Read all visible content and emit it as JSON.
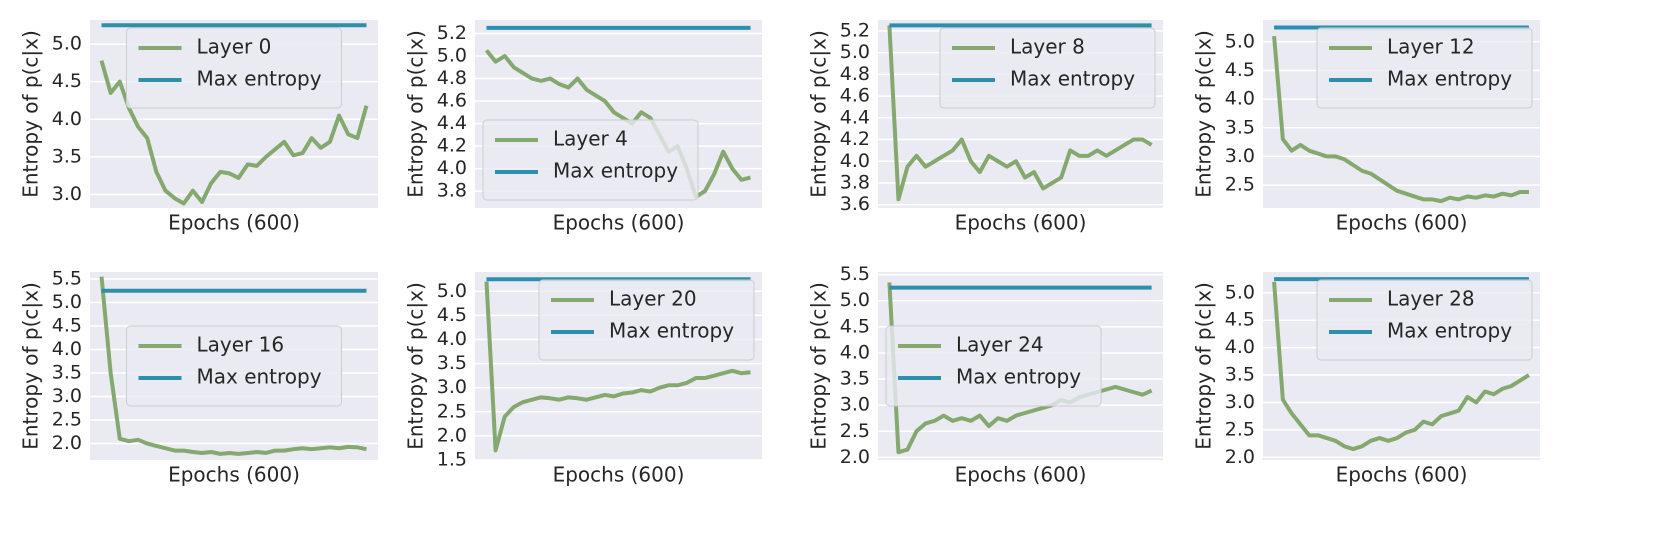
{
  "chart_data": [
    {
      "type": "line",
      "ylabel": "Entropy of p(c|x)",
      "xlabel": "Epochs (600)",
      "ylim": [
        2.82,
        5.32
      ],
      "yticks": [
        {
          "value": 3,
          "label": "3.0"
        },
        3.5,
        {
          "value": 4,
          "label": "4.0"
        },
        4.5,
        {
          "value": 5,
          "label": "5.0"
        }
      ],
      "grid": true,
      "legend": "upper center",
      "series": [
        {
          "name": "Layer 0",
          "color": "#84a86e",
          "values": [
            4.78,
            4.35,
            4.5,
            4.15,
            3.9,
            3.75,
            3.3,
            3.05,
            2.95,
            2.88,
            3.05,
            2.9,
            3.15,
            3.3,
            3.28,
            3.22,
            3.4,
            3.38,
            3.5,
            3.6,
            3.7,
            3.52,
            3.55,
            3.75,
            3.62,
            3.7,
            4.05,
            3.8,
            3.75,
            4.18
          ]
        },
        {
          "name": "Max entropy",
          "color": "#2e8fad",
          "values": [
            5.25,
            5.25,
            5.25,
            5.25,
            5.25,
            5.25,
            5.25,
            5.25,
            5.25,
            5.25,
            5.25,
            5.25,
            5.25,
            5.25,
            5.25,
            5.25,
            5.25,
            5.25,
            5.25,
            5.25,
            5.25,
            5.25,
            5.25,
            5.25,
            5.25,
            5.25,
            5.25,
            5.25,
            5.25,
            5.25
          ]
        }
      ]
    },
    {
      "type": "line",
      "ylabel": "Entropy of p(c|x)",
      "xlabel": "Epochs (600)",
      "ylim": [
        3.65,
        5.32
      ],
      "yticks": [
        3.8,
        {
          "value": 4,
          "label": "4.0"
        },
        4.2,
        4.4,
        4.6,
        4.8,
        {
          "value": 5,
          "label": "5.0"
        },
        5.2
      ],
      "grid": true,
      "legend": "lower left",
      "series": [
        {
          "name": "Layer 4",
          "color": "#84a86e",
          "values": [
            5.05,
            4.95,
            5.0,
            4.9,
            4.85,
            4.8,
            4.78,
            4.8,
            4.75,
            4.72,
            4.8,
            4.7,
            4.65,
            4.6,
            4.5,
            4.45,
            4.4,
            4.5,
            4.45,
            4.3,
            4.15,
            4.2,
            4.0,
            3.75,
            3.8,
            3.95,
            4.15,
            4.0,
            3.9,
            3.92
          ]
        },
        {
          "name": "Max entropy",
          "color": "#2e8fad",
          "values": [
            5.25,
            5.25,
            5.25,
            5.25,
            5.25,
            5.25,
            5.25,
            5.25,
            5.25,
            5.25,
            5.25,
            5.25,
            5.25,
            5.25,
            5.25,
            5.25,
            5.25,
            5.25,
            5.25,
            5.25,
            5.25,
            5.25,
            5.25,
            5.25,
            5.25,
            5.25,
            5.25,
            5.25,
            5.25,
            5.25
          ]
        }
      ]
    },
    {
      "type": "line",
      "ylabel": "Entropy of p(c|x)",
      "xlabel": "Epochs (600)",
      "ylim": [
        3.57,
        5.3
      ],
      "yticks": [
        3.6,
        3.8,
        {
          "value": 4,
          "label": "4.0"
        },
        4.2,
        4.4,
        4.6,
        4.8,
        {
          "value": 5,
          "label": "5.0"
        },
        5.2
      ],
      "grid": true,
      "legend": "upper right",
      "series": [
        {
          "name": "Layer 8",
          "color": "#84a86e",
          "values": [
            5.25,
            3.65,
            3.95,
            4.05,
            3.95,
            4.0,
            4.05,
            4.1,
            4.2,
            4.0,
            3.9,
            4.05,
            4.0,
            3.95,
            4.0,
            3.85,
            3.9,
            3.75,
            3.8,
            3.85,
            4.1,
            4.05,
            4.05,
            4.1,
            4.05,
            4.1,
            4.15,
            4.2,
            4.2,
            4.15
          ]
        },
        {
          "name": "Max entropy",
          "color": "#2e8fad",
          "values": [
            5.25,
            5.25,
            5.25,
            5.25,
            5.25,
            5.25,
            5.25,
            5.25,
            5.25,
            5.25,
            5.25,
            5.25,
            5.25,
            5.25,
            5.25,
            5.25,
            5.25,
            5.25,
            5.25,
            5.25,
            5.25,
            5.25,
            5.25,
            5.25,
            5.25,
            5.25,
            5.25,
            5.25,
            5.25,
            5.25
          ]
        }
      ]
    },
    {
      "type": "line",
      "ylabel": "Entropy of p(c|x)",
      "xlabel": "Epochs (600)",
      "ylim": [
        2.1,
        5.38
      ],
      "yticks": [
        2.5,
        {
          "value": 3,
          "label": "3.0"
        },
        3.5,
        {
          "value": 4,
          "label": "4.0"
        },
        4.5,
        {
          "value": 5,
          "label": "5.0"
        }
      ],
      "grid": true,
      "legend": "upper right",
      "series": [
        {
          "name": "Layer 12",
          "color": "#84a86e",
          "values": [
            5.1,
            3.3,
            3.1,
            3.2,
            3.1,
            3.05,
            3.0,
            3.0,
            2.95,
            2.85,
            2.75,
            2.7,
            2.6,
            2.5,
            2.4,
            2.35,
            2.3,
            2.25,
            2.25,
            2.22,
            2.28,
            2.25,
            2.3,
            2.28,
            2.32,
            2.3,
            2.35,
            2.32,
            2.38,
            2.38
          ]
        },
        {
          "name": "Max entropy",
          "color": "#2e8fad",
          "values": [
            5.25,
            5.25,
            5.25,
            5.25,
            5.25,
            5.25,
            5.25,
            5.25,
            5.25,
            5.25,
            5.25,
            5.25,
            5.25,
            5.25,
            5.25,
            5.25,
            5.25,
            5.25,
            5.25,
            5.25,
            5.25,
            5.25,
            5.25,
            5.25,
            5.25,
            5.25,
            5.25,
            5.25,
            5.25,
            5.25
          ]
        }
      ]
    },
    {
      "type": "line",
      "ylabel": "Entropy of p(c|x)",
      "xlabel": "Epochs (600)",
      "ylim": [
        1.65,
        5.65
      ],
      "yticks": [
        {
          "value": 2,
          "label": "2.0"
        },
        2.5,
        {
          "value": 3,
          "label": "3.0"
        },
        3.5,
        {
          "value": 4,
          "label": "4.0"
        },
        4.5,
        {
          "value": 5,
          "label": "5.0"
        },
        5.5
      ],
      "grid": true,
      "legend": "center",
      "series": [
        {
          "name": "Layer 16",
          "color": "#84a86e",
          "values": [
            5.55,
            3.5,
            2.1,
            2.05,
            2.08,
            2.0,
            1.95,
            1.9,
            1.85,
            1.85,
            1.82,
            1.8,
            1.82,
            1.78,
            1.8,
            1.78,
            1.8,
            1.82,
            1.8,
            1.85,
            1.85,
            1.88,
            1.9,
            1.88,
            1.9,
            1.92,
            1.9,
            1.93,
            1.92,
            1.88
          ]
        },
        {
          "name": "Max entropy",
          "color": "#2e8fad",
          "values": [
            5.25,
            5.25,
            5.25,
            5.25,
            5.25,
            5.25,
            5.25,
            5.25,
            5.25,
            5.25,
            5.25,
            5.25,
            5.25,
            5.25,
            5.25,
            5.25,
            5.25,
            5.25,
            5.25,
            5.25,
            5.25,
            5.25,
            5.25,
            5.25,
            5.25,
            5.25,
            5.25,
            5.25,
            5.25,
            5.25
          ]
        }
      ]
    },
    {
      "type": "line",
      "ylabel": "Entropy of p(c|x)",
      "xlabel": "Epochs (600)",
      "ylim": [
        1.5,
        5.4
      ],
      "yticks": [
        1.5,
        {
          "value": 2,
          "label": "2.0"
        },
        2.5,
        {
          "value": 3,
          "label": "3.0"
        },
        3.5,
        {
          "value": 4,
          "label": "4.0"
        },
        4.5,
        {
          "value": 5,
          "label": "5.0"
        }
      ],
      "grid": true,
      "legend": "upper right",
      "series": [
        {
          "name": "Layer 20",
          "color": "#84a86e",
          "values": [
            5.2,
            1.7,
            2.4,
            2.6,
            2.7,
            2.75,
            2.8,
            2.78,
            2.75,
            2.8,
            2.78,
            2.75,
            2.8,
            2.85,
            2.82,
            2.88,
            2.9,
            2.95,
            2.92,
            3.0,
            3.05,
            3.05,
            3.1,
            3.2,
            3.2,
            3.25,
            3.3,
            3.35,
            3.3,
            3.32
          ]
        },
        {
          "name": "Max entropy",
          "color": "#2e8fad",
          "values": [
            5.25,
            5.25,
            5.25,
            5.25,
            5.25,
            5.25,
            5.25,
            5.25,
            5.25,
            5.25,
            5.25,
            5.25,
            5.25,
            5.25,
            5.25,
            5.25,
            5.25,
            5.25,
            5.25,
            5.25,
            5.25,
            5.25,
            5.25,
            5.25,
            5.25,
            5.25,
            5.25,
            5.25,
            5.25,
            5.25
          ]
        }
      ]
    },
    {
      "type": "line",
      "ylabel": "Entropy of p(c|x)",
      "xlabel": "Epochs (600)",
      "ylim": [
        1.95,
        5.55
      ],
      "yticks": [
        {
          "value": 2,
          "label": "2.0"
        },
        2.5,
        {
          "value": 3,
          "label": "3.0"
        },
        3.5,
        {
          "value": 4,
          "label": "4.0"
        },
        4.5,
        {
          "value": 5,
          "label": "5.0"
        },
        5.5
      ],
      "grid": true,
      "legend": "center left",
      "series": [
        {
          "name": "Layer 24",
          "color": "#84a86e",
          "values": [
            5.35,
            2.1,
            2.15,
            2.5,
            2.65,
            2.7,
            2.8,
            2.7,
            2.75,
            2.7,
            2.8,
            2.6,
            2.75,
            2.7,
            2.8,
            2.85,
            2.9,
            2.95,
            3.0,
            3.1,
            3.05,
            3.15,
            3.2,
            3.25,
            3.3,
            3.35,
            3.3,
            3.25,
            3.2,
            3.28
          ]
        },
        {
          "name": "Max entropy",
          "color": "#2e8fad",
          "values": [
            5.25,
            5.25,
            5.25,
            5.25,
            5.25,
            5.25,
            5.25,
            5.25,
            5.25,
            5.25,
            5.25,
            5.25,
            5.25,
            5.25,
            5.25,
            5.25,
            5.25,
            5.25,
            5.25,
            5.25,
            5.25,
            5.25,
            5.25,
            5.25,
            5.25,
            5.25,
            5.25,
            5.25,
            5.25,
            5.25
          ]
        }
      ]
    },
    {
      "type": "line",
      "ylabel": "Entropy of p(c|x)",
      "xlabel": "Epochs (600)",
      "ylim": [
        1.95,
        5.38
      ],
      "yticks": [
        {
          "value": 2,
          "label": "2.0"
        },
        2.5,
        {
          "value": 3,
          "label": "3.0"
        },
        3.5,
        {
          "value": 4,
          "label": "4.0"
        },
        4.5,
        {
          "value": 5,
          "label": "5.0"
        }
      ],
      "grid": true,
      "legend": "upper right",
      "series": [
        {
          "name": "Layer 28",
          "color": "#84a86e",
          "values": [
            5.2,
            3.05,
            2.8,
            2.6,
            2.4,
            2.4,
            2.35,
            2.3,
            2.2,
            2.15,
            2.2,
            2.3,
            2.35,
            2.3,
            2.35,
            2.45,
            2.5,
            2.65,
            2.6,
            2.75,
            2.8,
            2.85,
            3.1,
            3.0,
            3.2,
            3.15,
            3.25,
            3.3,
            3.4,
            3.5
          ]
        },
        {
          "name": "Max entropy",
          "color": "#2e8fad",
          "values": [
            5.25,
            5.25,
            5.25,
            5.25,
            5.25,
            5.25,
            5.25,
            5.25,
            5.25,
            5.25,
            5.25,
            5.25,
            5.25,
            5.25,
            5.25,
            5.25,
            5.25,
            5.25,
            5.25,
            5.25,
            5.25,
            5.25,
            5.25,
            5.25,
            5.25,
            5.25,
            5.25,
            5.25,
            5.25,
            5.25
          ]
        }
      ]
    }
  ]
}
